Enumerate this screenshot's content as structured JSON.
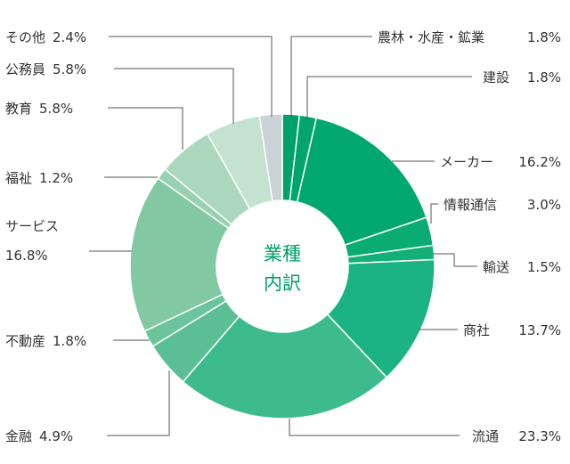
{
  "chart_data": {
    "type": "pie",
    "title": "業種内訳",
    "center_label_lines": [
      "業種",
      "内訳"
    ],
    "slices": [
      {
        "label": "農林・水産・鉱業",
        "value_text": "1.8%",
        "value": 1.8,
        "color": "#00a06a"
      },
      {
        "label": "建設",
        "value_text": "1.8%",
        "value": 1.8,
        "color": "#00a56e"
      },
      {
        "label": "メーカー",
        "value_text": "16.2%",
        "value": 16.2,
        "color": "#00a86f"
      },
      {
        "label": "情報通信",
        "value_text": "3.0%",
        "value": 3.0,
        "color": "#0aac74"
      },
      {
        "label": "輸送",
        "value_text": "1.5%",
        "value": 1.5,
        "color": "#12b078"
      },
      {
        "label": "商社",
        "value_text": "13.7%",
        "value": 13.7,
        "color": "#1cb383"
      },
      {
        "label": "流通",
        "value_text": "23.3%",
        "value": 23.3,
        "color": "#3dbb8c"
      },
      {
        "label": "金融",
        "value_text": "4.9%",
        "value": 4.9,
        "color": "#5cbf94"
      },
      {
        "label": "不動産",
        "value_text": "1.8%",
        "value": 1.8,
        "color": "#6cc49b"
      },
      {
        "label": "サービス",
        "value_text": "16.8%",
        "value": 16.8,
        "color": "#82c9a3"
      },
      {
        "label": "福祉",
        "value_text": "1.2%",
        "value": 1.2,
        "color": "#98d1b0"
      },
      {
        "label": "教育",
        "value_text": "5.8%",
        "value": 5.8,
        "color": "#abd8bd"
      },
      {
        "label": "公務員",
        "value_text": "5.8%",
        "value": 5.8,
        "color": "#c3e3ce"
      },
      {
        "label": "その他",
        "value_text": "2.4%",
        "value": 2.4,
        "color": "#c9d3d8"
      }
    ]
  }
}
